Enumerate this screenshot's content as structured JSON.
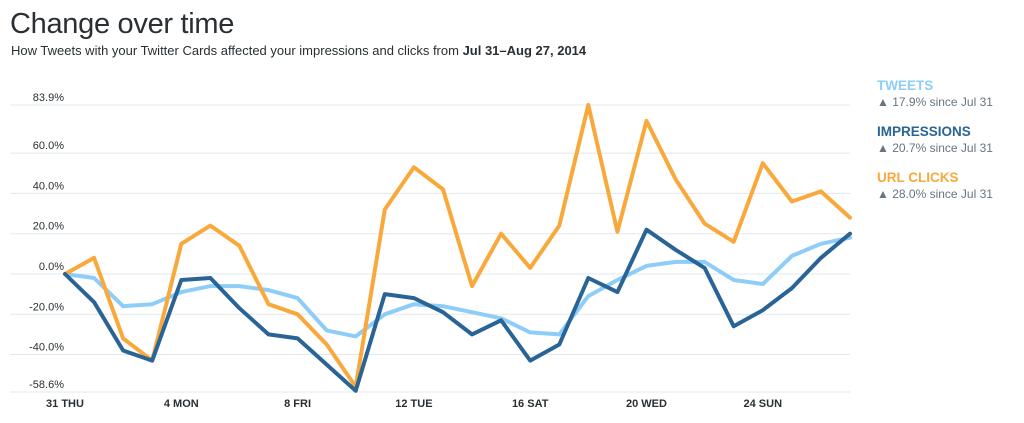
{
  "header": {
    "title": "Change over time",
    "subtitle_prefix": "How Tweets with your Twitter Cards affected your impressions and clicks from ",
    "subtitle_range": "Jul 31–Aug 27, 2014"
  },
  "legend": [
    {
      "name": "TWEETS",
      "delta": "▲ 17.9% since Jul 31",
      "color": "#8ecdf8"
    },
    {
      "name": "IMPRESSIONS",
      "delta": "▲ 20.7% since Jul 31",
      "color": "#2a6496"
    },
    {
      "name": "URL CLICKS",
      "delta": "▲ 28.0% since Jul 31",
      "color": "#f9a93c"
    }
  ],
  "chart_data": {
    "type": "line",
    "title": "Change over time",
    "x_start": "Jul 31",
    "x_ticks": [
      {
        "index": 0,
        "label": "31 THU"
      },
      {
        "index": 4,
        "label": "4 MON"
      },
      {
        "index": 8,
        "label": "8 FRI"
      },
      {
        "index": 12,
        "label": "12 TUE"
      },
      {
        "index": 16,
        "label": "16 SAT"
      },
      {
        "index": 20,
        "label": "20 WED"
      },
      {
        "index": 24,
        "label": "24 SUN"
      }
    ],
    "y_ticks": [
      {
        "value": 83.9,
        "label": "83.9%"
      },
      {
        "value": 60,
        "label": "60.0%"
      },
      {
        "value": 40,
        "label": "40.0%"
      },
      {
        "value": 20,
        "label": "20.0%"
      },
      {
        "value": 0,
        "label": "0.0%"
      },
      {
        "value": -20,
        "label": "-20.0%"
      },
      {
        "value": -40,
        "label": "-40.0%"
      },
      {
        "value": -58.6,
        "label": "-58.6%"
      }
    ],
    "ylim": [
      -58.6,
      83.9
    ],
    "grid": true,
    "legend_position": "right",
    "series": [
      {
        "name": "TWEETS",
        "color": "#8ecdf8",
        "values": [
          0,
          -2,
          -16,
          -15,
          -9,
          -6,
          -6,
          -8,
          -12,
          -28,
          -31,
          -20,
          -15,
          -16,
          -19,
          -22,
          -29,
          -30,
          -11,
          -3,
          4,
          6,
          6,
          -3,
          -5,
          9,
          15,
          18
        ]
      },
      {
        "name": "IMPRESSIONS",
        "color": "#2a6496",
        "values": [
          0,
          -14,
          -38,
          -43,
          -3,
          -2,
          -17,
          -30,
          -32,
          -45,
          -58,
          -10,
          -12,
          -19,
          -30,
          -23,
          -43,
          -35,
          -2,
          -9,
          22,
          12,
          3,
          -26,
          -18,
          -7,
          8,
          20
        ]
      },
      {
        "name": "URL CLICKS",
        "color": "#f9a93c",
        "values": [
          0,
          8,
          -32,
          -43,
          15,
          24,
          14,
          -15,
          -20,
          -35,
          -56,
          32,
          53,
          42,
          -6,
          20,
          3,
          24,
          83.9,
          21,
          76,
          47,
          25,
          16,
          55,
          36,
          41,
          28
        ]
      }
    ]
  }
}
